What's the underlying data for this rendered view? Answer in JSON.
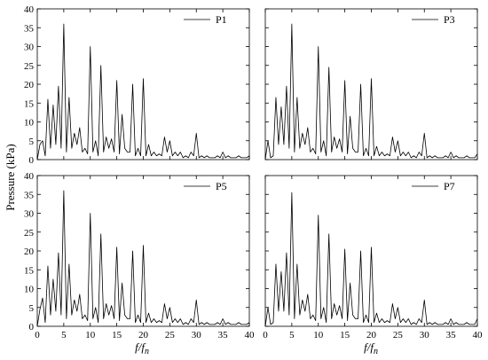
{
  "chart_data": {
    "type": "line",
    "ylabel": "Pressure (kPa)",
    "xlabel_main": "f",
    "xlabel_sep": "/",
    "xlabel_den": "f",
    "xlabel_sub": "n",
    "xlim": [
      0,
      40
    ],
    "ylim": [
      0,
      40
    ],
    "xticks": [
      0,
      5,
      10,
      15,
      20,
      25,
      30,
      35,
      40
    ],
    "yticks": [
      0,
      5,
      10,
      15,
      20,
      25,
      30,
      35,
      40
    ],
    "grid": false,
    "legend_position": "top-right",
    "colors": {
      "line": "#000000",
      "background": "#ffffff"
    },
    "panels": [
      {
        "name": "P1",
        "x": [
          0,
          0.5,
          1,
          1.5,
          2,
          2.5,
          3,
          3.5,
          4,
          4.5,
          5,
          5.5,
          6,
          6.5,
          7,
          7.5,
          8,
          8.5,
          9,
          9.5,
          10,
          10.5,
          11,
          11.5,
          12,
          12.5,
          13,
          13.5,
          14,
          14.5,
          15,
          15.5,
          16,
          16.5,
          17,
          17.5,
          18,
          18.5,
          19,
          19.5,
          20,
          20.5,
          21,
          21.5,
          22,
          22.5,
          23,
          23.5,
          24,
          24.5,
          25,
          25.5,
          26,
          26.5,
          27,
          27.5,
          28,
          28.5,
          29,
          29.5,
          30,
          30.5,
          31,
          31.5,
          32,
          32.5,
          33,
          33.5,
          34,
          34.5,
          35,
          35.5,
          36,
          36.5,
          37,
          37.5,
          38,
          38.5,
          39,
          39.5,
          40
        ],
        "y": [
          0,
          4,
          5,
          1,
          16,
          3,
          14.5,
          4,
          19.5,
          3,
          36,
          2,
          16.5,
          3,
          7,
          4,
          8.5,
          2,
          3,
          1.5,
          30,
          2,
          5,
          1,
          25,
          2,
          6,
          3,
          5.5,
          2,
          21,
          1.5,
          12,
          3,
          2,
          2,
          20,
          1,
          3,
          1,
          21.5,
          1,
          4,
          1,
          2,
          1,
          1.5,
          1,
          6,
          2,
          5,
          1,
          2,
          1,
          2,
          0.5,
          1,
          0.5,
          2,
          1,
          7,
          0.5,
          1,
          0.5,
          1,
          0.5,
          0.5,
          0.5,
          1,
          0.5,
          2,
          0.5,
          1,
          0.5,
          0.5,
          0.5,
          1,
          0.5,
          0.5,
          0.5,
          1
        ]
      },
      {
        "name": "P3",
        "x": [
          0,
          0.5,
          1,
          1.5,
          2,
          2.5,
          3,
          3.5,
          4,
          4.5,
          5,
          5.5,
          6,
          6.5,
          7,
          7.5,
          8,
          8.5,
          9,
          9.5,
          10,
          10.5,
          11,
          11.5,
          12,
          12.5,
          13,
          13.5,
          14,
          14.5,
          15,
          15.5,
          16,
          16.5,
          17,
          17.5,
          18,
          18.5,
          19,
          19.5,
          20,
          20.5,
          21,
          21.5,
          22,
          22.5,
          23,
          23.5,
          24,
          24.5,
          25,
          25.5,
          26,
          26.5,
          27,
          27.5,
          28,
          28.5,
          29,
          29.5,
          30,
          30.5,
          31,
          31.5,
          32,
          32.5,
          33,
          33.5,
          34,
          34.5,
          35,
          35.5,
          36,
          36.5,
          37,
          37.5,
          38,
          38.5,
          39,
          39.5,
          40
        ],
        "y": [
          0,
          5,
          0.5,
          1,
          16.5,
          4,
          14,
          4,
          19.5,
          3,
          36,
          2,
          16.5,
          3,
          7,
          4,
          8.5,
          2,
          3,
          1.5,
          30,
          2,
          5,
          1,
          24.5,
          2,
          6,
          3,
          5.5,
          2,
          21,
          1.5,
          11.5,
          3,
          2,
          2,
          20,
          1,
          3,
          1,
          21.5,
          1,
          3.5,
          1,
          2,
          1,
          1.5,
          1,
          6,
          2,
          5,
          1,
          2,
          1,
          2,
          0.5,
          1,
          0.5,
          2,
          1,
          7,
          0.5,
          1,
          0.5,
          1,
          0.5,
          0.5,
          0.5,
          1,
          0.5,
          2,
          0.5,
          1,
          0.5,
          0.5,
          0.5,
          1,
          0.5,
          0.5,
          0.5,
          1.5
        ]
      },
      {
        "name": "P5",
        "x": [
          0,
          0.5,
          1,
          1.5,
          2,
          2.5,
          3,
          3.5,
          4,
          4.5,
          5,
          5.5,
          6,
          6.5,
          7,
          7.5,
          8,
          8.5,
          9,
          9.5,
          10,
          10.5,
          11,
          11.5,
          12,
          12.5,
          13,
          13.5,
          14,
          14.5,
          15,
          15.5,
          16,
          16.5,
          17,
          17.5,
          18,
          18.5,
          19,
          19.5,
          20,
          20.5,
          21,
          21.5,
          22,
          22.5,
          23,
          23.5,
          24,
          24.5,
          25,
          25.5,
          26,
          26.5,
          27,
          27.5,
          28,
          28.5,
          29,
          29.5,
          30,
          30.5,
          31,
          31.5,
          32,
          32.5,
          33,
          33.5,
          34,
          34.5,
          35,
          35.5,
          36,
          36.5,
          37,
          37.5,
          38,
          38.5,
          39,
          39.5,
          40
        ],
        "y": [
          0,
          4.5,
          7.5,
          1,
          16,
          3,
          12.5,
          4,
          19.5,
          3,
          36,
          2,
          16.5,
          3,
          7,
          4,
          8.5,
          2,
          3,
          1.5,
          30,
          2,
          5,
          1,
          24.5,
          2,
          6,
          3,
          5.5,
          2,
          21,
          1.5,
          11.5,
          3,
          2,
          2,
          20,
          1,
          3,
          1,
          21.5,
          1,
          3.5,
          1,
          2,
          1,
          1.5,
          1,
          6,
          2,
          5,
          1,
          2,
          1,
          2,
          0.5,
          1,
          0.5,
          2,
          1,
          7,
          0.5,
          1,
          0.5,
          1,
          0.5,
          0.5,
          0.5,
          1,
          0.5,
          2,
          0.5,
          1,
          0.5,
          0.5,
          0.5,
          1,
          0.5,
          0.5,
          0.5,
          1
        ]
      },
      {
        "name": "P7",
        "x": [
          0,
          0.5,
          1,
          1.5,
          2,
          2.5,
          3,
          3.5,
          4,
          4.5,
          5,
          5.5,
          6,
          6.5,
          7,
          7.5,
          8,
          8.5,
          9,
          9.5,
          10,
          10.5,
          11,
          11.5,
          12,
          12.5,
          13,
          13.5,
          14,
          14.5,
          15,
          15.5,
          16,
          16.5,
          17,
          17.5,
          18,
          18.5,
          19,
          19.5,
          20,
          20.5,
          21,
          21.5,
          22,
          22.5,
          23,
          23.5,
          24,
          24.5,
          25,
          25.5,
          26,
          26.5,
          27,
          27.5,
          28,
          28.5,
          29,
          29.5,
          30,
          30.5,
          31,
          31.5,
          32,
          32.5,
          33,
          33.5,
          34,
          34.5,
          35,
          35.5,
          36,
          36.5,
          37,
          37.5,
          38,
          38.5,
          39,
          39.5,
          40
        ],
        "y": [
          0,
          5,
          0.5,
          1,
          16.5,
          4,
          14.5,
          4,
          19.5,
          3,
          35.5,
          2,
          16.5,
          3,
          7,
          4,
          8.5,
          2,
          3,
          1.5,
          29.5,
          2,
          5,
          1,
          24.5,
          2,
          6,
          3,
          5.5,
          2,
          20.5,
          1.5,
          11.5,
          3,
          2,
          2,
          20,
          1,
          3,
          1,
          21,
          1,
          3.5,
          1,
          2,
          1,
          1.5,
          1,
          6,
          2,
          5,
          1,
          2,
          1,
          2,
          0.5,
          1,
          0.5,
          2,
          1,
          7,
          0.5,
          1,
          0.5,
          1,
          0.5,
          0.5,
          0.5,
          1,
          0.5,
          2,
          0.5,
          1,
          0.5,
          0.5,
          0.5,
          1,
          0.5,
          0.5,
          0.5,
          2
        ]
      }
    ]
  }
}
